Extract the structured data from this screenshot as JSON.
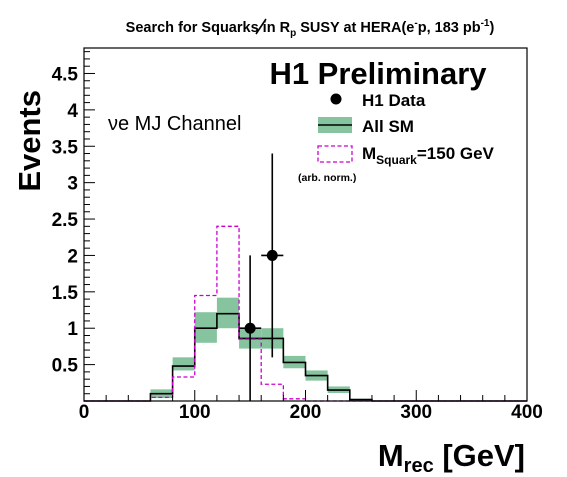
{
  "chart_data": {
    "type": "histogram",
    "title_main": "Search for Squarks in ",
    "title_rp": "R",
    "title_rp_sub": "p",
    "title_mid": " SUSY at HERA(e",
    "title_sup": "-",
    "title_end": "p, 183 pb",
    "title_sup2": "-1",
    "title_close": ")",
    "watermark": "H1 Preliminary",
    "channel": "νe MJ Channel",
    "xlabel_main": "M",
    "xlabel_sub": "rec",
    "xlabel_unit": " [GeV]",
    "ylabel": "Events",
    "xlim": [
      0,
      400
    ],
    "ylim": [
      0,
      4.85
    ],
    "x_ticks": [
      0,
      100,
      200,
      300,
      400
    ],
    "x_tick_labels": [
      "0",
      "100",
      "200",
      "300",
      "400"
    ],
    "y_ticks": [
      0.5,
      1,
      1.5,
      2,
      2.5,
      3,
      3.5,
      4,
      4.5
    ],
    "y_tick_labels": [
      "0.5",
      "1",
      "1.5",
      "2",
      "2.5",
      "3",
      "3.5",
      "4",
      "4.5"
    ],
    "bin_width": 20,
    "bin_edges": [
      0,
      20,
      40,
      60,
      80,
      100,
      120,
      140,
      160,
      180,
      200,
      220,
      240,
      260,
      280,
      300,
      320,
      340,
      360,
      380,
      400
    ],
    "series": [
      {
        "name": "All SM",
        "kind": "band",
        "values": [
          0,
          0,
          0,
          0.1,
          0.48,
          1.0,
          1.2,
          0.86,
          0.86,
          0.53,
          0.35,
          0.15,
          0.02,
          0,
          0,
          0,
          0,
          0,
          0,
          0
        ],
        "err_low": [
          0,
          0,
          0,
          0.04,
          0.42,
          0.8,
          1.0,
          0.72,
          0.72,
          0.45,
          0.28,
          0.11,
          0.01,
          0,
          0,
          0,
          0,
          0,
          0,
          0
        ],
        "err_high": [
          0,
          0,
          0,
          0.16,
          0.6,
          1.22,
          1.42,
          1.0,
          1.0,
          0.62,
          0.42,
          0.2,
          0.03,
          0,
          0,
          0,
          0,
          0,
          0,
          0
        ],
        "color": "#86c49f"
      },
      {
        "name_main": "M",
        "name_sub": "Squark",
        "name_end": "=150 GeV",
        "note": "(arb. norm.)",
        "kind": "dashed-histogram",
        "values": [
          0,
          0,
          0,
          0.05,
          0.33,
          1.45,
          2.4,
          0.85,
          0.23,
          0.03,
          0,
          0,
          0,
          0,
          0,
          0,
          0,
          0,
          0,
          0
        ],
        "color": "#cc00cc"
      },
      {
        "name": "H1 Data",
        "kind": "points",
        "x": [
          150,
          170
        ],
        "y": [
          1,
          2
        ],
        "y_err_low": [
          1.0,
          1.4
        ],
        "y_err_high": [
          1.0,
          1.4
        ],
        "x_err": [
          10,
          10
        ],
        "color": "#000000"
      }
    ],
    "colors": {
      "watermark": "#0000ee",
      "note": "#990099",
      "sm_band": "#86c49f",
      "signal": "#cc00cc"
    }
  }
}
